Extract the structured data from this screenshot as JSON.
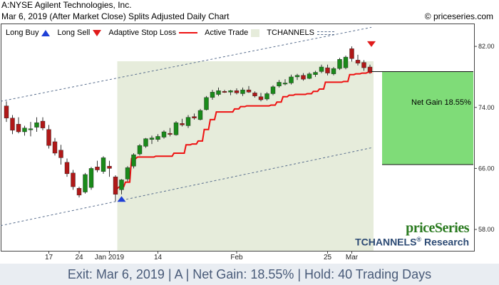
{
  "header": {
    "line1": "A:NYSE Agilent Technologies, Inc.",
    "line2": "Mar 6, 2019 (After Market Close)  Splits Adjusted Daily Chart",
    "source": "© priceseries.com"
  },
  "legend": {
    "long_buy": "Long Buy",
    "long_sell": "Long Sell",
    "adaptive_stop": "Adaptive Stop Loss",
    "active_trade": "Active Trade",
    "tchannels": "TCHANNELS"
  },
  "brand": {
    "name": "priceSeries",
    "tchannels": "TCHANNELS",
    "research": "Research",
    "reg": "®"
  },
  "net_gain_label": "Net Gain 18.55%",
  "footer": "Exit: Mar 6, 2019 | A | Net Gain: 18.55% | Hold: 40 Trading Days",
  "colors": {
    "up_candle": "#1a8a1a",
    "down_candle": "#b01818",
    "stop_line": "#ee1111",
    "active_trade_bg": "#e6ecdb",
    "gain_box": "#7fdc78",
    "channel": "#5a6f8e"
  },
  "chart_data": {
    "type": "candlestick",
    "y_axis": {
      "ticks": [
        58,
        66,
        74,
        82
      ],
      "tick_labels": [
        "58.00",
        "66.00",
        "74.00",
        "82.00"
      ],
      "ylim": [
        55.2,
        85.0
      ],
      "position": "right"
    },
    "x_axis": {
      "tick_labels": [
        "17",
        "24",
        "Jan 2019",
        "14",
        "Feb",
        "25",
        "Mar"
      ],
      "tick_dates": [
        "2018-12-17",
        "2018-12-24",
        "2019-01-02",
        "2019-01-14",
        "2019-02-01",
        "2019-02-25",
        "2019-03-01"
      ]
    },
    "grid": false,
    "candles": [
      {
        "date": "2018-12-06",
        "o": 74.2,
        "h": 74.8,
        "l": 72.1,
        "c": 72.6
      },
      {
        "date": "2018-12-07",
        "o": 72.6,
        "h": 73.0,
        "l": 70.5,
        "c": 71.0
      },
      {
        "date": "2018-12-10",
        "o": 71.8,
        "h": 72.7,
        "l": 70.6,
        "c": 70.8
      },
      {
        "date": "2018-12-11",
        "o": 70.8,
        "h": 71.6,
        "l": 70.3,
        "c": 71.3
      },
      {
        "date": "2018-12-12",
        "o": 71.2,
        "h": 72.1,
        "l": 70.2,
        "c": 71.2
      },
      {
        "date": "2018-12-13",
        "o": 71.4,
        "h": 72.7,
        "l": 70.8,
        "c": 72.0
      },
      {
        "date": "2018-12-14",
        "o": 72.2,
        "h": 72.7,
        "l": 71.0,
        "c": 71.3
      },
      {
        "date": "2018-12-17",
        "o": 71.1,
        "h": 71.7,
        "l": 68.6,
        "c": 69.0
      },
      {
        "date": "2018-12-18",
        "o": 69.5,
        "h": 70.0,
        "l": 67.7,
        "c": 68.0
      },
      {
        "date": "2018-12-19",
        "o": 68.4,
        "h": 69.1,
        "l": 66.5,
        "c": 67.4
      },
      {
        "date": "2018-12-20",
        "o": 66.8,
        "h": 67.3,
        "l": 64.9,
        "c": 65.3
      },
      {
        "date": "2018-12-21",
        "o": 65.4,
        "h": 65.8,
        "l": 63.2,
        "c": 63.6
      },
      {
        "date": "2018-12-24",
        "o": 63.4,
        "h": 63.6,
        "l": 62.2,
        "c": 62.5
      },
      {
        "date": "2018-12-26",
        "o": 62.9,
        "h": 65.4,
        "l": 62.7,
        "c": 65.2
      },
      {
        "date": "2018-12-27",
        "o": 63.5,
        "h": 66.2,
        "l": 63.2,
        "c": 66.0
      },
      {
        "date": "2018-12-28",
        "o": 66.2,
        "h": 67.0,
        "l": 65.5,
        "c": 65.8
      },
      {
        "date": "2018-12-31",
        "o": 65.6,
        "h": 67.6,
        "l": 65.3,
        "c": 67.4
      },
      {
        "date": "2019-01-02",
        "o": 66.3,
        "h": 67.0,
        "l": 64.9,
        "c": 66.0
      },
      {
        "date": "2019-01-03",
        "o": 64.9,
        "h": 65.1,
        "l": 61.7,
        "c": 62.6
      },
      {
        "date": "2019-01-04",
        "o": 63.2,
        "h": 64.6,
        "l": 62.6,
        "c": 64.5
      },
      {
        "date": "2019-01-07",
        "o": 64.6,
        "h": 66.3,
        "l": 64.3,
        "c": 66.1
      },
      {
        "date": "2019-01-08",
        "o": 66.3,
        "h": 68.0,
        "l": 66.0,
        "c": 67.8
      },
      {
        "date": "2019-01-09",
        "o": 67.9,
        "h": 69.2,
        "l": 67.7,
        "c": 69.0
      },
      {
        "date": "2019-01-10",
        "o": 68.9,
        "h": 70.0,
        "l": 68.7,
        "c": 69.9
      },
      {
        "date": "2019-01-11",
        "o": 69.8,
        "h": 70.3,
        "l": 69.2,
        "c": 70.0
      },
      {
        "date": "2019-01-14",
        "o": 69.8,
        "h": 70.5,
        "l": 69.5,
        "c": 70.2
      },
      {
        "date": "2019-01-15",
        "o": 70.1,
        "h": 71.0,
        "l": 69.9,
        "c": 70.8
      },
      {
        "date": "2019-01-16",
        "o": 70.6,
        "h": 71.3,
        "l": 70.2,
        "c": 70.5
      },
      {
        "date": "2019-01-17",
        "o": 70.4,
        "h": 72.2,
        "l": 70.3,
        "c": 72.0
      },
      {
        "date": "2019-01-18",
        "o": 71.9,
        "h": 72.5,
        "l": 71.5,
        "c": 71.7
      },
      {
        "date": "2019-01-22",
        "o": 71.6,
        "h": 73.0,
        "l": 71.3,
        "c": 72.7
      },
      {
        "date": "2019-01-23",
        "o": 72.8,
        "h": 73.2,
        "l": 72.4,
        "c": 72.6
      },
      {
        "date": "2019-01-24",
        "o": 72.4,
        "h": 73.8,
        "l": 72.3,
        "c": 73.6
      },
      {
        "date": "2019-01-25",
        "o": 73.7,
        "h": 75.5,
        "l": 73.6,
        "c": 75.3
      },
      {
        "date": "2019-01-28",
        "o": 75.3,
        "h": 76.3,
        "l": 75.0,
        "c": 76.0
      },
      {
        "date": "2019-01-29",
        "o": 75.7,
        "h": 76.6,
        "l": 75.5,
        "c": 76.2
      },
      {
        "date": "2019-01-30",
        "o": 76.1,
        "h": 76.3,
        "l": 75.9,
        "c": 76.0
      },
      {
        "date": "2019-01-31",
        "o": 76.0,
        "h": 76.3,
        "l": 75.6,
        "c": 76.2
      },
      {
        "date": "2019-02-01",
        "o": 76.2,
        "h": 76.5,
        "l": 75.7,
        "c": 75.9
      },
      {
        "date": "2019-02-04",
        "o": 75.8,
        "h": 76.6,
        "l": 75.5,
        "c": 76.3
      },
      {
        "date": "2019-02-05",
        "o": 76.3,
        "h": 76.8,
        "l": 75.9,
        "c": 76.0
      },
      {
        "date": "2019-02-06",
        "o": 75.9,
        "h": 76.1,
        "l": 75.3,
        "c": 75.5
      },
      {
        "date": "2019-02-07",
        "o": 75.4,
        "h": 75.9,
        "l": 74.8,
        "c": 75.0
      },
      {
        "date": "2019-02-08",
        "o": 75.1,
        "h": 76.0,
        "l": 74.9,
        "c": 75.8
      },
      {
        "date": "2019-02-11",
        "o": 75.8,
        "h": 76.9,
        "l": 75.6,
        "c": 76.7
      },
      {
        "date": "2019-02-12",
        "o": 76.8,
        "h": 77.6,
        "l": 76.6,
        "c": 77.3
      },
      {
        "date": "2019-02-13",
        "o": 77.2,
        "h": 77.7,
        "l": 76.9,
        "c": 77.2
      },
      {
        "date": "2019-02-14",
        "o": 77.2,
        "h": 78.3,
        "l": 77.0,
        "c": 78.0
      },
      {
        "date": "2019-02-15",
        "o": 78.0,
        "h": 78.4,
        "l": 77.6,
        "c": 78.2
      },
      {
        "date": "2019-02-19",
        "o": 78.2,
        "h": 78.5,
        "l": 77.5,
        "c": 77.7
      },
      {
        "date": "2019-02-20",
        "o": 77.8,
        "h": 78.6,
        "l": 77.7,
        "c": 78.4
      },
      {
        "date": "2019-02-21",
        "o": 78.3,
        "h": 78.8,
        "l": 78.0,
        "c": 78.6
      },
      {
        "date": "2019-02-22",
        "o": 78.7,
        "h": 79.6,
        "l": 78.5,
        "c": 79.3
      },
      {
        "date": "2019-02-25",
        "o": 79.2,
        "h": 79.6,
        "l": 78.2,
        "c": 78.5
      },
      {
        "date": "2019-02-26",
        "o": 78.4,
        "h": 79.3,
        "l": 78.2,
        "c": 79.1
      },
      {
        "date": "2019-02-27",
        "o": 79.1,
        "h": 80.5,
        "l": 78.9,
        "c": 80.3
      },
      {
        "date": "2019-02-28",
        "o": 79.2,
        "h": 80.8,
        "l": 79.0,
        "c": 80.6
      },
      {
        "date": "2019-03-01",
        "o": 81.7,
        "h": 82.0,
        "l": 80.0,
        "c": 80.4
      },
      {
        "date": "2019-03-04",
        "o": 80.2,
        "h": 80.9,
        "l": 79.5,
        "c": 79.8
      },
      {
        "date": "2019-03-05",
        "o": 79.9,
        "h": 80.2,
        "l": 78.8,
        "c": 79.2
      },
      {
        "date": "2019-03-06",
        "o": 79.3,
        "h": 79.6,
        "l": 78.4,
        "c": 78.7
      }
    ],
    "adaptive_stop": [
      {
        "date": "2019-01-03",
        "value": 63.4
      },
      {
        "date": "2019-01-04",
        "value": 63.6
      },
      {
        "date": "2019-01-07",
        "value": 64.2
      },
      {
        "date": "2019-01-08",
        "value": 67.3
      },
      {
        "date": "2019-01-09",
        "value": 67.5
      },
      {
        "date": "2019-01-10",
        "value": 67.5
      },
      {
        "date": "2019-01-11",
        "value": 67.5
      },
      {
        "date": "2019-01-14",
        "value": 67.6
      },
      {
        "date": "2019-01-15",
        "value": 67.6
      },
      {
        "date": "2019-01-16",
        "value": 67.6
      },
      {
        "date": "2019-01-17",
        "value": 68.0
      },
      {
        "date": "2019-01-18",
        "value": 68.0
      },
      {
        "date": "2019-01-22",
        "value": 69.1
      },
      {
        "date": "2019-01-23",
        "value": 69.2
      },
      {
        "date": "2019-01-24",
        "value": 69.6
      },
      {
        "date": "2019-01-25",
        "value": 71.1
      },
      {
        "date": "2019-01-28",
        "value": 72.4
      },
      {
        "date": "2019-01-29",
        "value": 73.4
      },
      {
        "date": "2019-01-30",
        "value": 73.4
      },
      {
        "date": "2019-01-31",
        "value": 73.4
      },
      {
        "date": "2019-02-01",
        "value": 73.8
      },
      {
        "date": "2019-02-04",
        "value": 74.1
      },
      {
        "date": "2019-02-05",
        "value": 74.2
      },
      {
        "date": "2019-02-06",
        "value": 74.2
      },
      {
        "date": "2019-02-07",
        "value": 74.2
      },
      {
        "date": "2019-02-08",
        "value": 74.2
      },
      {
        "date": "2019-02-11",
        "value": 74.3
      },
      {
        "date": "2019-02-12",
        "value": 74.7
      },
      {
        "date": "2019-02-13",
        "value": 75.4
      },
      {
        "date": "2019-02-14",
        "value": 75.6
      },
      {
        "date": "2019-02-15",
        "value": 75.7
      },
      {
        "date": "2019-02-19",
        "value": 75.7
      },
      {
        "date": "2019-02-20",
        "value": 75.8
      },
      {
        "date": "2019-02-21",
        "value": 76.1
      },
      {
        "date": "2019-02-22",
        "value": 76.4
      },
      {
        "date": "2019-02-25",
        "value": 77.3
      },
      {
        "date": "2019-02-26",
        "value": 77.3
      },
      {
        "date": "2019-02-27",
        "value": 77.3
      },
      {
        "date": "2019-02-28",
        "value": 77.4
      },
      {
        "date": "2019-03-01",
        "value": 78.3
      },
      {
        "date": "2019-03-04",
        "value": 78.4
      },
      {
        "date": "2019-03-05",
        "value": 78.5
      },
      {
        "date": "2019-03-06",
        "value": 78.6
      }
    ],
    "channel_upper": [
      {
        "date": "2018-12-06",
        "value": 74.8
      },
      {
        "date": "2019-03-06",
        "value": 84.5
      }
    ],
    "channel_lower": [
      {
        "date": "2018-12-06",
        "value": 58.5
      },
      {
        "date": "2019-03-06",
        "value": 68.7
      }
    ],
    "active_trade": {
      "start": "2019-01-04",
      "end": "2019-03-06"
    },
    "long_buy": {
      "date": "2019-01-04",
      "price": 62.0
    },
    "long_sell": {
      "date": "2019-03-06",
      "price": 82.3
    },
    "gain_box": {
      "entry": 66.5,
      "exit": 78.7
    }
  }
}
